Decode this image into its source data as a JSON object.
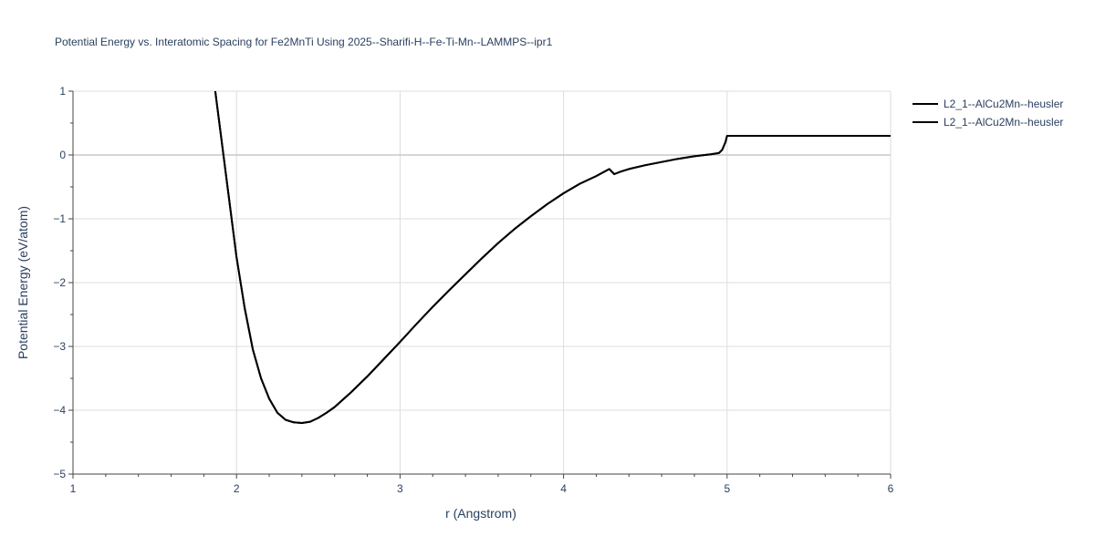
{
  "chart_data": {
    "type": "line",
    "title": "Potential Energy vs. Interatomic Spacing for Fe2MnTi Using 2025--Sharifi-H--Fe-Ti-Mn--LAMMPS--ipr1",
    "xlabel": "r (Angstrom)",
    "ylabel": "Potential Energy (eV/atom)",
    "xlim": [
      1,
      6
    ],
    "ylim": [
      -5,
      1
    ],
    "x_ticks": [
      "1",
      "2",
      "3",
      "4",
      "5",
      "6"
    ],
    "y_ticks": [
      "1",
      "0",
      "−1",
      "−2",
      "−3",
      "−4",
      "−5"
    ],
    "grid": true,
    "legend_position": "top-right",
    "series": [
      {
        "name": "L2_1--AlCu2Mn--heusler",
        "color": "#000000",
        "x": [
          1.87,
          1.9,
          1.95,
          2.0,
          2.05,
          2.1,
          2.15,
          2.2,
          2.25,
          2.3,
          2.35,
          2.4,
          2.45,
          2.5,
          2.55,
          2.6,
          2.7,
          2.8,
          2.9,
          3.0,
          3.1,
          3.2,
          3.3,
          3.4,
          3.5,
          3.6,
          3.7,
          3.8,
          3.9,
          4.0,
          4.1,
          4.2,
          4.25,
          4.28,
          4.31,
          4.35,
          4.4,
          4.5,
          4.6,
          4.7,
          4.8,
          4.9,
          4.95,
          4.97,
          4.99,
          5.0,
          5.2,
          5.5,
          6.0
        ],
        "y": [
          1.0,
          0.4,
          -0.6,
          -1.6,
          -2.4,
          -3.05,
          -3.5,
          -3.82,
          -4.04,
          -4.15,
          -4.19,
          -4.2,
          -4.18,
          -4.12,
          -4.04,
          -3.95,
          -3.72,
          -3.47,
          -3.2,
          -2.93,
          -2.65,
          -2.38,
          -2.12,
          -1.87,
          -1.62,
          -1.38,
          -1.16,
          -0.96,
          -0.77,
          -0.6,
          -0.45,
          -0.33,
          -0.26,
          -0.22,
          -0.3,
          -0.26,
          -0.22,
          -0.16,
          -0.11,
          -0.06,
          -0.02,
          0.01,
          0.03,
          0.08,
          0.2,
          0.3,
          0.3,
          0.3,
          0.3
        ]
      },
      {
        "name": "L2_1--AlCu2Mn--heusler",
        "color": "#000000",
        "x": [
          1.87,
          1.9,
          1.95,
          2.0,
          2.05,
          2.1,
          2.15,
          2.2,
          2.25,
          2.3,
          2.35,
          2.4,
          2.45,
          2.5,
          2.55,
          2.6,
          2.7,
          2.8,
          2.9,
          3.0,
          3.1,
          3.2,
          3.3,
          3.4,
          3.5,
          3.6,
          3.7,
          3.8,
          3.9,
          4.0,
          4.1,
          4.2,
          4.25,
          4.28,
          4.31,
          4.35,
          4.4,
          4.5,
          4.6,
          4.7,
          4.8,
          4.9,
          4.95,
          4.97,
          4.99,
          5.0,
          5.2,
          5.5,
          6.0
        ],
        "y": [
          1.0,
          0.4,
          -0.6,
          -1.6,
          -2.4,
          -3.05,
          -3.5,
          -3.82,
          -4.04,
          -4.15,
          -4.19,
          -4.2,
          -4.18,
          -4.12,
          -4.04,
          -3.95,
          -3.72,
          -3.47,
          -3.2,
          -2.93,
          -2.65,
          -2.38,
          -2.12,
          -1.87,
          -1.62,
          -1.38,
          -1.16,
          -0.96,
          -0.77,
          -0.6,
          -0.45,
          -0.33,
          -0.26,
          -0.22,
          -0.3,
          -0.26,
          -0.22,
          -0.16,
          -0.11,
          -0.06,
          -0.02,
          0.01,
          0.03,
          0.08,
          0.2,
          0.3,
          0.3,
          0.3,
          0.3
        ]
      }
    ]
  }
}
